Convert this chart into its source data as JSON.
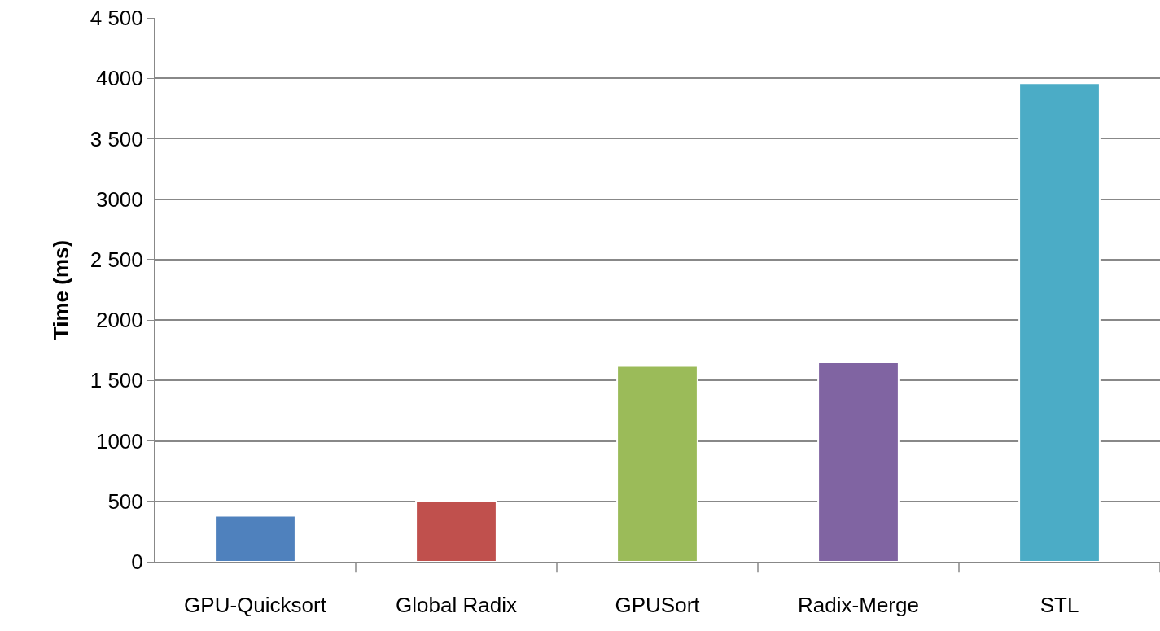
{
  "chart_data": {
    "type": "bar",
    "ylabel": "Time (ms)",
    "categories": [
      "GPU-Quicksort",
      "Global Radix",
      "GPUSort",
      "Radix-Merge",
      "STL"
    ],
    "values": [
      380,
      500,
      1620,
      1650,
      3960
    ],
    "colors": [
      "#4f81bd",
      "#c0504d",
      "#9bbb59",
      "#8064a2",
      "#4bacc6"
    ],
    "ylim": [
      0,
      4500
    ],
    "yticks": [
      0,
      500,
      1000,
      {
        "value": 1500,
        "label": "1 500"
      },
      2000,
      {
        "value": 2500,
        "label": "2 500"
      },
      3000,
      {
        "value": 3500,
        "label": "3 500"
      },
      4000,
      {
        "value": 4500,
        "label": "4 500"
      }
    ],
    "grid": "y",
    "legend": false
  }
}
